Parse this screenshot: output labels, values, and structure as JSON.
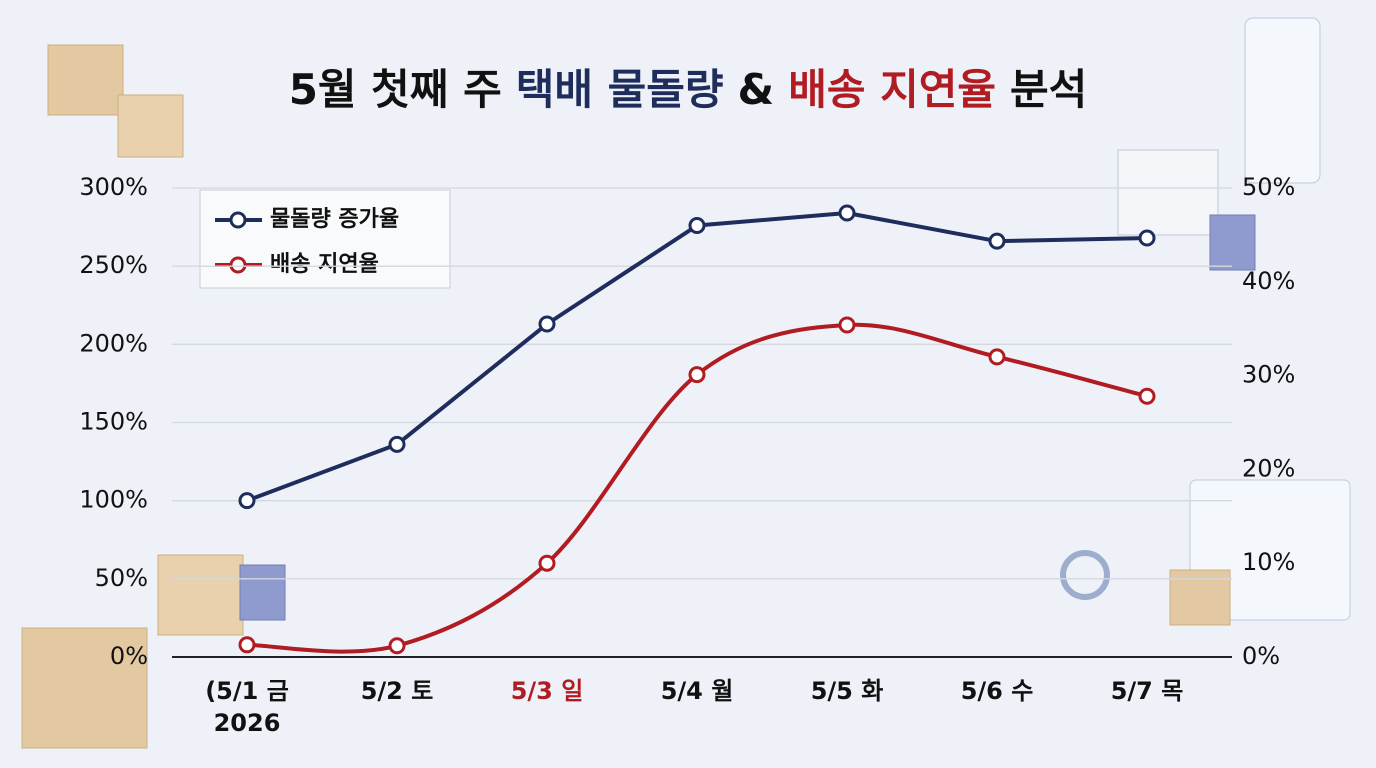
{
  "chart_data": {
    "type": "line",
    "title": [
      {
        "text": "5월 첫째 주",
        "color": "#111111"
      },
      {
        "text": "택배 물돌량",
        "color": "#1f2d5c"
      },
      {
        "text": "&",
        "color": "#111111"
      },
      {
        "text": "배송 지연율",
        "color": "#b01c22"
      },
      {
        "text": "분석",
        "color": "#111111"
      }
    ],
    "categories": [
      "(5/1 금\n2026",
      "5/2 토",
      "5/3 일",
      "5/4 월",
      "5/5 화",
      "5/6 수",
      "5/7 목"
    ],
    "category_colors": [
      "#111111",
      "#111111",
      "#b01c22",
      "#111111",
      "#111111",
      "#111111",
      "#111111"
    ],
    "series": [
      {
        "name": "물돌량 증가율",
        "color": "#1f2d5c",
        "values": [
          100,
          136,
          213,
          276,
          284,
          266,
          268
        ],
        "smooth": false
      },
      {
        "name": "배송 지연율",
        "color": "#b01c22",
        "axis": "y2",
        "values": [
          1.3,
          1.2,
          10,
          30.1,
          35.4,
          32,
          27.8
        ],
        "smooth": true
      }
    ],
    "ylim": [
      0,
      300
    ],
    "yticks": [
      {
        "value": 0,
        "label": "0%"
      },
      {
        "value": 50,
        "label": "50%"
      },
      {
        "value": 100,
        "label": "100%"
      },
      {
        "value": 150,
        "label": "150%"
      },
      {
        "value": 200,
        "label": "200%"
      },
      {
        "value": 250,
        "label": "250%"
      },
      {
        "value": 300,
        "label": "300%"
      }
    ],
    "y2lim": [
      0,
      50
    ],
    "y2ticks": [
      {
        "value": 0,
        "label": "0%"
      },
      {
        "value": 10,
        "label": "10%"
      },
      {
        "value": 20,
        "label": "20%"
      },
      {
        "value": 30,
        "label": "30%"
      },
      {
        "value": 40,
        "label": "40%"
      },
      {
        "value": 50,
        "label": "50%"
      }
    ],
    "grid": true,
    "legend": "top-left"
  }
}
